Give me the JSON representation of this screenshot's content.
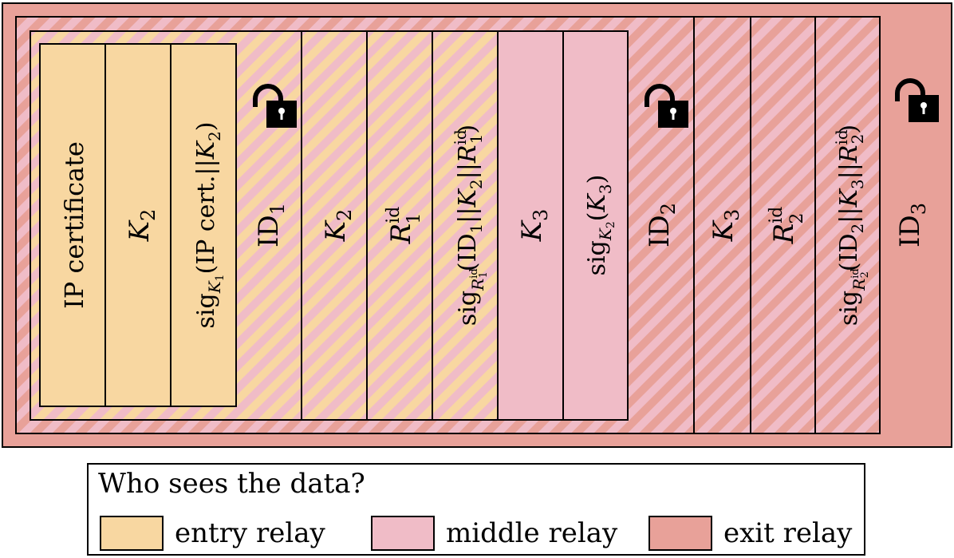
{
  "colors": {
    "entry": "#f8d7a1",
    "middle": "#f0bcc7",
    "exit": "#e8a199",
    "outline": "#000000"
  },
  "layer1": {
    "cells": [
      {
        "id": "ip-cert",
        "label": "IP certificate"
      },
      {
        "id": "k2",
        "label": "K",
        "sub": "2"
      },
      {
        "id": "sig-k1",
        "label": "sig",
        "sub": "K1",
        "rest": "(IP cert.||K2)"
      }
    ],
    "id_label": "ID",
    "id_sub": "1"
  },
  "layer2": {
    "cells": [
      {
        "id": "k2b",
        "label": "K",
        "sub": "2"
      },
      {
        "id": "r1",
        "label": "R",
        "sub": "1",
        "sup": "id"
      },
      {
        "id": "sig-r1",
        "label": "sig",
        "sub": "R1 id",
        "rest": "(ID1||K2||R1 id)"
      },
      {
        "id": "k3",
        "label": "K",
        "sub": "3"
      },
      {
        "id": "sig-k2",
        "label": "sig",
        "sub": "K2",
        "rest": "(K3)"
      }
    ],
    "id_label": "ID",
    "id_sub": "2"
  },
  "layer3": {
    "cells": [
      {
        "id": "k3b",
        "label": "K",
        "sub": "3"
      },
      {
        "id": "r2",
        "label": "R",
        "sub": "2",
        "sup": "id"
      },
      {
        "id": "sig-r2",
        "label": "sig",
        "sub": "R2 id",
        "rest": "(ID2||K3||R2 id)"
      }
    ],
    "id_label": "ID",
    "id_sub": "3"
  },
  "legend": {
    "title": "Who sees the data?",
    "items": [
      {
        "label": "entry relay",
        "color": "#f8d7a1"
      },
      {
        "label": "middle relay",
        "color": "#f0bcc7"
      },
      {
        "label": "exit relay",
        "color": "#e8a199"
      }
    ]
  }
}
